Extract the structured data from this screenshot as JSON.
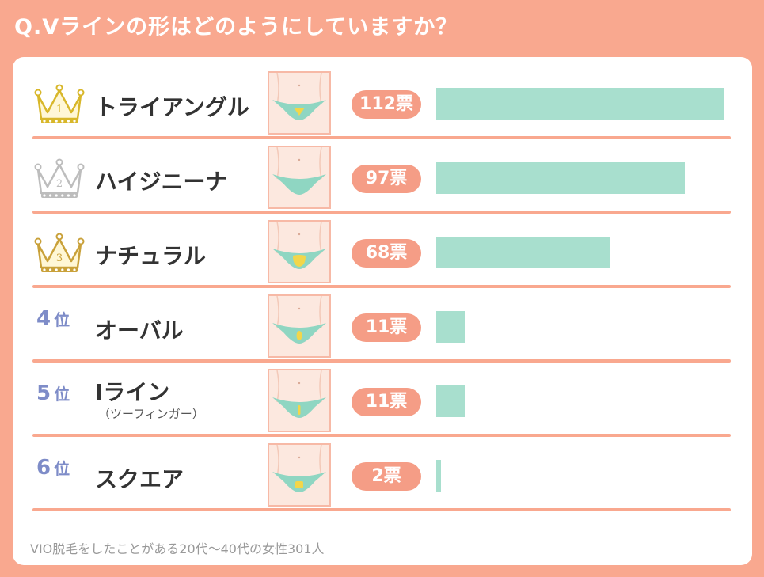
{
  "title": "Q.Vラインの形はどのようにしていますか？",
  "footnote": "VIO脱毛をしたことがある20代〜40代の女性301人",
  "colors": {
    "background": "#F9A88F",
    "card": "#FFFFFF",
    "bar": "#A8DFCE",
    "pill": "#F59D86",
    "rank_text": "#7E8CC8",
    "gold": "#D8B72A",
    "silver": "#BDBDBD",
    "bronze": "#C9A13A",
    "swimsuit": "#8FD6C2",
    "hair": "#F2D64A"
  },
  "chart_data": {
    "type": "bar",
    "orientation": "horizontal",
    "title": "Q.Vラインの形はどのようにしていますか？",
    "categories": [
      "トライアングル",
      "ハイジニーナ",
      "ナチュラル",
      "オーバル",
      "Iライン",
      "スクエア"
    ],
    "values": [
      112,
      97,
      68,
      11,
      11,
      2
    ],
    "xlim": [
      0,
      112
    ],
    "value_unit": "票",
    "value_labels": [
      "112票",
      "97票",
      "68票",
      "11票",
      "11票",
      "2票"
    ],
    "ranks": [
      {
        "rank": 1,
        "icon": "crown-gold-icon",
        "crown_number": "1"
      },
      {
        "rank": 2,
        "icon": "crown-silver-icon",
        "crown_number": "2"
      },
      {
        "rank": 3,
        "icon": "crown-bronze-icon",
        "crown_number": "3"
      },
      {
        "rank": 4,
        "text": "4",
        "suffix": "位"
      },
      {
        "rank": 5,
        "text": "5",
        "suffix": "位"
      },
      {
        "rank": 6,
        "text": "6",
        "suffix": "位"
      }
    ],
    "sublabels": [
      "",
      "",
      "",
      "",
      "（ツーフィンガー）",
      ""
    ],
    "hair_shapes": [
      "triangle",
      "none",
      "natural",
      "oval",
      "i-line",
      "square"
    ],
    "grid": false,
    "legend": "none"
  }
}
